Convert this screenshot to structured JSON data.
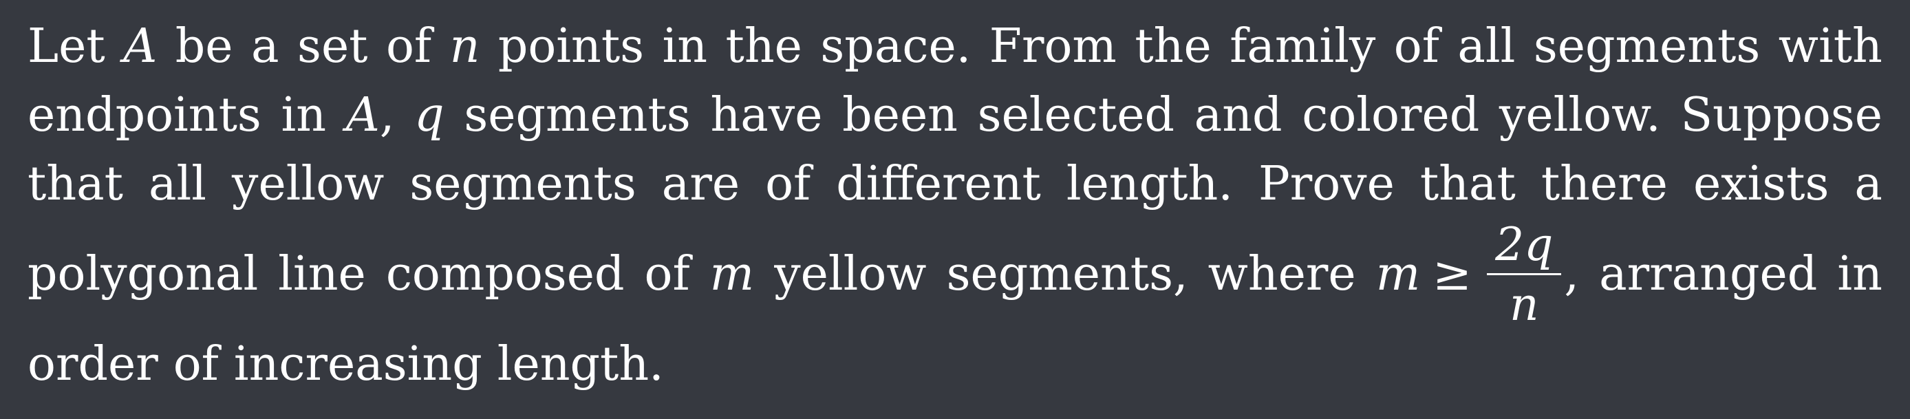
{
  "problem": {
    "lines": [
      [
        "Let",
        "A",
        "be",
        "a",
        "set",
        "of",
        "n",
        "points",
        "in",
        "the",
        "space.",
        "From",
        "the",
        "family",
        "of",
        "all",
        "segments",
        "with"
      ],
      [
        "endpoints",
        "in",
        "A,",
        "q",
        "segments",
        "have",
        "been",
        "selected",
        "and",
        "colored",
        "yellow.",
        "Suppose"
      ],
      [
        "that",
        "all",
        "yellow",
        "segments",
        "are",
        "of",
        "different",
        "length.",
        "Prove",
        "that",
        "there",
        "exists",
        "a"
      ],
      [
        "polygonal",
        "line",
        "composed",
        "of",
        "m",
        "yellow",
        "segments,",
        "where",
        "m ≥",
        "2q/n,",
        "arranged",
        "in"
      ],
      [
        "order",
        "of",
        "increasing",
        "length."
      ]
    ],
    "math": {
      "set_var": "A",
      "count_var": "n",
      "selected_var": "q",
      "chain_var": "m",
      "geq": "≥",
      "frac_num": "2q",
      "frac_den": "n"
    },
    "text": {
      "l1a": "Let",
      "l1b": "be",
      "l1c": "a",
      "l1d": "set",
      "l1e": "of",
      "l1f": "points",
      "l1g": "in",
      "l1h": "the",
      "l1i": "space.",
      "l1j": "From",
      "l1k": "the",
      "l1l": "family",
      "l1m": "of",
      "l1n": "all",
      "l1o": "segments",
      "l1p": "with",
      "l2a": "endpoints",
      "l2b": "in",
      "l2c": ",",
      "l2d": "segments",
      "l2e": "have",
      "l2f": "been",
      "l2g": "selected",
      "l2h": "and",
      "l2i": "colored",
      "l2j": "yellow.",
      "l2k": "Suppose",
      "l3a": "that",
      "l3b": "all",
      "l3c": "yellow",
      "l3d": "segments",
      "l3e": "are",
      "l3f": "of",
      "l3g": "different",
      "l3h": "length.",
      "l3i": "Prove",
      "l3j": "that",
      "l3k": "there",
      "l3l": "exists",
      "l3m": "a",
      "l4a": "polygonal",
      "l4b": "line",
      "l4c": "composed",
      "l4d": "of",
      "l4e": "yellow",
      "l4f": "segments,",
      "l4g": "where",
      "l4h": ",",
      "l4i": "arranged",
      "l4j": "in",
      "l5a": "order",
      "l5b": "of",
      "l5c": "increasing",
      "l5d": "length."
    }
  }
}
